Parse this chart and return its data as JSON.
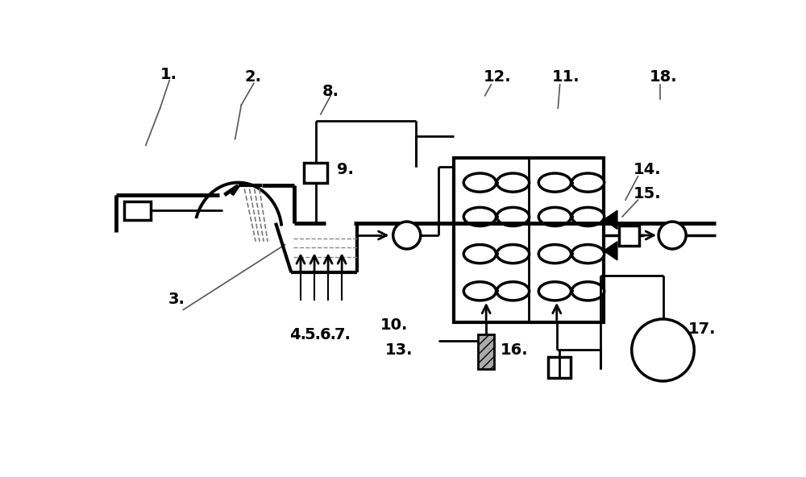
{
  "bg_color": "#ffffff",
  "lc": "#000000",
  "fs": 14,
  "fw": "bold"
}
